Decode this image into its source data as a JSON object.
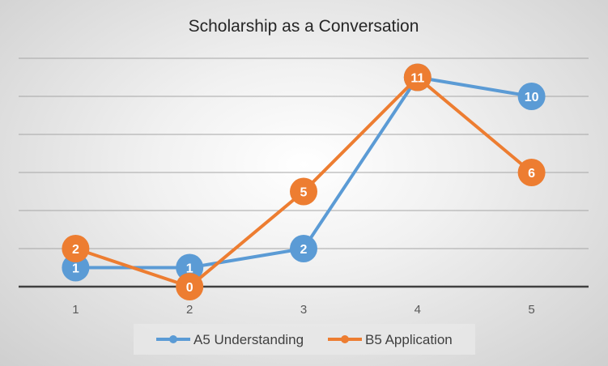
{
  "chart_data": {
    "type": "line",
    "title": "Scholarship as a Conversation",
    "xlabel": "",
    "ylabel": "",
    "x": [
      "1",
      "2",
      "3",
      "4",
      "5"
    ],
    "ylim": [
      0,
      12
    ],
    "y_gridlines": [
      0,
      2,
      4,
      6,
      8,
      10,
      12
    ],
    "y_tick_labels_shown": false,
    "grid": true,
    "legend_position": "bottom",
    "series": [
      {
        "name": "A5 Understanding",
        "color": "#5b9bd5",
        "values": [
          1,
          1,
          2,
          11,
          10
        ]
      },
      {
        "name": "B5 Application",
        "color": "#ed7d31",
        "values": [
          2,
          0,
          5,
          11,
          6
        ]
      }
    ]
  }
}
